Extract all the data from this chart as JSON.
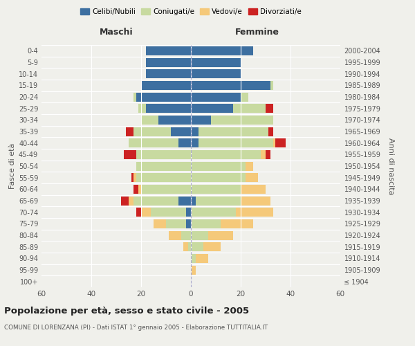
{
  "age_groups": [
    "100+",
    "95-99",
    "90-94",
    "85-89",
    "80-84",
    "75-79",
    "70-74",
    "65-69",
    "60-64",
    "55-59",
    "50-54",
    "45-49",
    "40-44",
    "35-39",
    "30-34",
    "25-29",
    "20-24",
    "15-19",
    "10-14",
    "5-9",
    "0-4"
  ],
  "birth_years": [
    "≤ 1904",
    "1905-1909",
    "1910-1914",
    "1915-1919",
    "1920-1924",
    "1925-1929",
    "1930-1934",
    "1935-1939",
    "1940-1944",
    "1945-1949",
    "1950-1954",
    "1955-1959",
    "1960-1964",
    "1965-1969",
    "1970-1974",
    "1975-1979",
    "1980-1984",
    "1985-1989",
    "1990-1994",
    "1995-1999",
    "2000-2004"
  ],
  "maschi": {
    "celibi": [
      0,
      0,
      0,
      0,
      0,
      2,
      2,
      5,
      0,
      0,
      0,
      0,
      5,
      8,
      13,
      18,
      22,
      20,
      18,
      18,
      18
    ],
    "coniugati": [
      0,
      0,
      0,
      1,
      4,
      8,
      14,
      18,
      20,
      22,
      22,
      22,
      20,
      15,
      7,
      3,
      1,
      0,
      0,
      0,
      0
    ],
    "vedovi": [
      0,
      0,
      0,
      2,
      5,
      5,
      4,
      2,
      1,
      1,
      0,
      0,
      0,
      0,
      0,
      0,
      0,
      0,
      0,
      0,
      0
    ],
    "divorziati": [
      0,
      0,
      0,
      0,
      0,
      0,
      2,
      3,
      2,
      1,
      0,
      5,
      0,
      3,
      0,
      0,
      0,
      0,
      0,
      0,
      0
    ]
  },
  "femmine": {
    "nubili": [
      0,
      0,
      0,
      0,
      0,
      0,
      0,
      2,
      0,
      0,
      0,
      0,
      3,
      3,
      8,
      17,
      20,
      32,
      20,
      20,
      25
    ],
    "coniugate": [
      0,
      0,
      2,
      5,
      7,
      12,
      18,
      18,
      20,
      22,
      22,
      28,
      30,
      28,
      25,
      13,
      3,
      1,
      0,
      0,
      0
    ],
    "vedove": [
      0,
      2,
      5,
      7,
      10,
      13,
      15,
      12,
      10,
      5,
      3,
      2,
      1,
      0,
      0,
      0,
      0,
      0,
      0,
      0,
      0
    ],
    "divorziate": [
      0,
      0,
      0,
      0,
      0,
      0,
      0,
      0,
      0,
      0,
      0,
      2,
      4,
      2,
      0,
      3,
      0,
      0,
      0,
      0,
      0
    ]
  },
  "colors": {
    "celibi": "#3d6fa0",
    "coniugati": "#c8daa0",
    "vedovi": "#f5c97a",
    "divorziati": "#cc2222"
  },
  "title": "Popolazione per età, sesso e stato civile - 2005",
  "subtitle": "COMUNE DI LORENZANA (PI) - Dati ISTAT 1° gennaio 2005 - Elaborazione TUTTITALIA.IT",
  "xlabel_left": "Maschi",
  "xlabel_right": "Femmine",
  "ylabel_left": "Fasce di età",
  "ylabel_right": "Anni di nascita",
  "xlim": 60,
  "background_color": "#f0f0eb"
}
